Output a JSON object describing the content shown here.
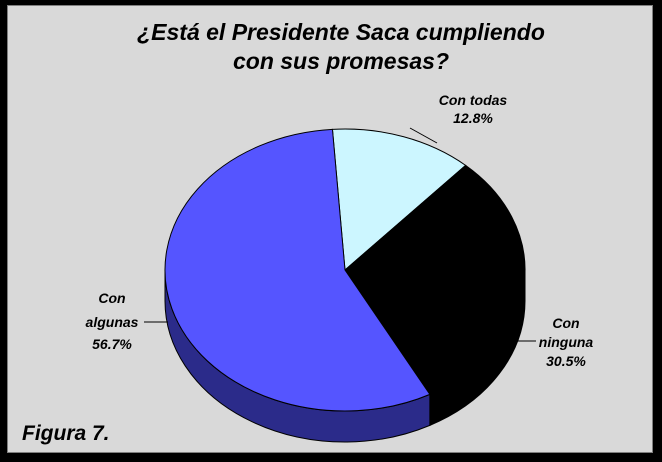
{
  "chart_data": {
    "type": "pie",
    "title_lines": [
      "¿Está el Presidente Saca cumpliendo",
      "con sus promesas?"
    ],
    "slices": [
      {
        "label_lines": [
          "Con todas"
        ],
        "value_text": "12.8%",
        "value": 12.8,
        "color": "#ccf6ff"
      },
      {
        "label_lines": [
          "Con",
          "ninguna"
        ],
        "value_text": "30.5%",
        "value": 30.5,
        "color": "#000000"
      },
      {
        "label_lines": [
          "Con",
          "algunas"
        ],
        "value_text": "56.7%",
        "value": 56.7,
        "color": "#5555ff"
      }
    ],
    "side_color_algunas": "#2b2b8a",
    "side_color_ninguna": "#000000",
    "three_d": true
  },
  "footer": {
    "figure_label": "Figura 7."
  }
}
